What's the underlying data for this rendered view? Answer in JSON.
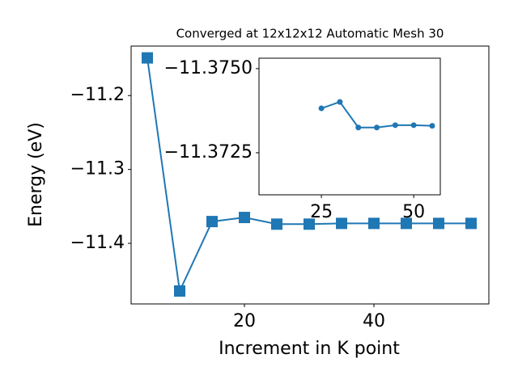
{
  "chart_data": [
    {
      "type": "line",
      "title": "Converged at 12x12x12 Automatic Mesh 30",
      "x_label": "Increment in K point",
      "y_label": "Energy (eV)",
      "x": [
        5,
        10,
        15,
        20,
        25,
        30,
        35,
        40,
        45,
        50,
        55
      ],
      "series": [
        {
          "color": "#1f77b4",
          "marker": "square",
          "values": [
            -11.149,
            -11.4645,
            -11.3705,
            -11.365,
            -11.374,
            -11.374,
            -11.373,
            -11.373,
            -11.373,
            -11.373,
            -11.373
          ]
        }
      ],
      "xlim": [
        2.5,
        57.75
      ],
      "xticks": [
        20,
        40
      ],
      "ylim": [
        -11.482,
        -11.133
      ],
      "yticks": [
        {
          "value": -11.4,
          "label": "−11.4"
        },
        {
          "value": -11.3,
          "label": "−11.3"
        },
        {
          "value": -11.2,
          "label": "−11.2"
        }
      ]
    },
    {
      "type": "line",
      "x": [
        25,
        30,
        35,
        40,
        45,
        50,
        55
      ],
      "series": [
        {
          "color": "#1f77b4",
          "marker": "circle",
          "values": [
            -11.37382,
            -11.37401,
            -11.37325,
            -11.37325,
            -11.37332,
            -11.37332,
            -11.3733
          ]
        }
      ],
      "xlim": [
        8.1,
        57.2
      ],
      "xticks": [
        25,
        50
      ],
      "ylim": [
        -11.37125,
        -11.37531
      ],
      "yticks": [
        {
          "value": -11.375,
          "label": "−11.3750"
        },
        {
          "value": -11.3725,
          "label": "−11.3725"
        }
      ]
    }
  ]
}
